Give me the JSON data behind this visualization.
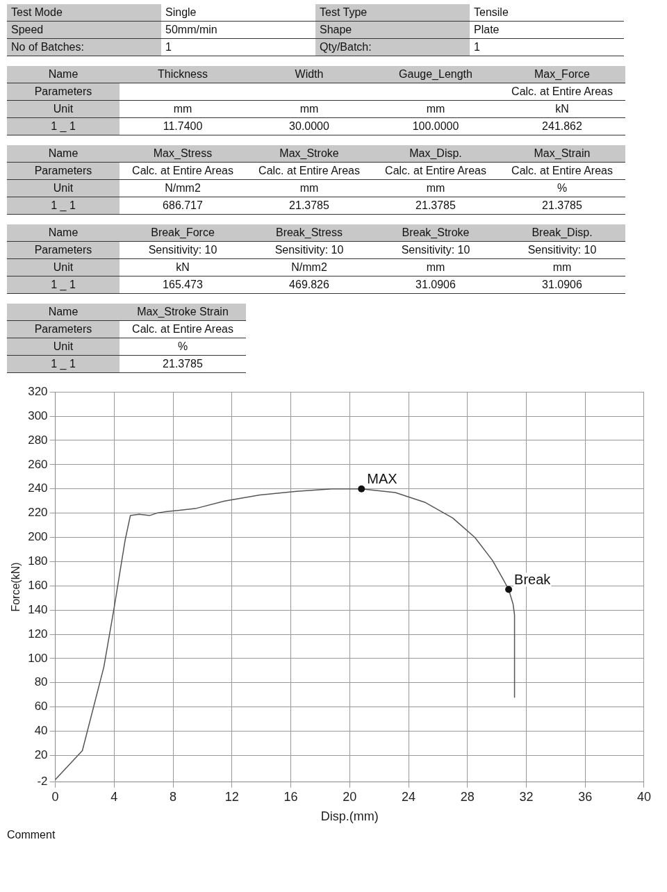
{
  "chart_data": [
    {
      "type": "other",
      "categories": [
        "Test Mode",
        "Single",
        "Test Type",
        "Tensile"
      ],
      "annotations": [
        "Speed",
        "50mm/min",
        "Shape",
        "Plate",
        "No of Batches:",
        "1",
        "Qty/Batch:",
        "1"
      ]
    },
    {
      "type": "other",
      "categories": [
        "Name",
        "Thickness",
        "Width",
        "Gauge_Length",
        "Max_Force"
      ],
      "annotations": [
        "Parameters",
        null,
        null,
        null,
        "Calc. at Entire Areas",
        "Unit",
        "mm",
        "mm",
        "mm",
        "kN",
        "1 _ 1",
        "11.7400",
        "30.0000",
        "100.0000",
        "241.862"
      ]
    },
    {
      "type": "other",
      "categories": [
        "Name",
        "Max_Stress",
        "Max_Stroke",
        "Max_Disp.",
        "Max_Strain"
      ],
      "annotations": [
        "Parameters",
        "Calc. at Entire Areas",
        "Calc. at Entire Areas",
        "Calc. at Entire Areas",
        "Calc. at Entire Areas",
        "Unit",
        "N/mm2",
        "mm",
        "mm",
        "%",
        "1 _ 1",
        "686.717",
        "21.3785",
        "21.3785",
        "21.3785"
      ]
    },
    {
      "type": "other",
      "categories": [
        "Name",
        "Break_Force",
        "Break_Stress",
        "Break_Stroke",
        "Break_Disp."
      ],
      "annotations": [
        "Parameters",
        "Sensitivity: 10",
        "Sensitivity: 10",
        "Sensitivity: 10",
        "Sensitivity: 10",
        "Unit",
        "kN",
        "N/mm2",
        "mm",
        "mm",
        "1 _ 1",
        "165.473",
        "469.826",
        "31.0906",
        "31.0906"
      ]
    },
    {
      "type": "other",
      "categories": [
        "Name",
        "Max_Stroke Strain"
      ],
      "annotations": [
        "Parameters",
        "Calc. at Entire Areas",
        "Unit",
        "%",
        "1 _ 1",
        "21.3785"
      ]
    },
    {
      "type": "line",
      "xlabel": "Disp.(mm)",
      "ylabel": "Force(kN)",
      "x": [
        0,
        1.84,
        3.3,
        4.0,
        4.75,
        5.1,
        5.7,
        6.4,
        6.9,
        7.4,
        9.6,
        11.5,
        13.9,
        16.4,
        18.8,
        20.8,
        23.1,
        25.1,
        27.0,
        28.5,
        29.7,
        30.4,
        30.8,
        31.1,
        31.2,
        31.2
      ],
      "series": [
        {
          "color": "#555555",
          "values": [
            0,
            24,
            93,
            142,
            198,
            218,
            219,
            218,
            220,
            221,
            224,
            230,
            235,
            238,
            240,
            240,
            237,
            229,
            216,
            200,
            181,
            166,
            157,
            145,
            136,
            68
          ]
        }
      ],
      "xlim": [
        0,
        40
      ],
      "xticks": [
        0,
        4,
        8,
        12,
        16,
        20,
        24,
        28,
        32,
        36,
        40
      ],
      "ylim": [
        -2,
        320
      ],
      "yticks": [
        -2,
        20,
        40,
        60,
        80,
        100,
        120,
        140,
        160,
        180,
        200,
        220,
        240,
        260,
        280,
        300,
        320
      ],
      "grid": true,
      "annotations": [
        {
          "text": "MAX",
          "x": 20.8,
          "y": 240
        },
        {
          "text": "Break",
          "x": 30.8,
          "y": 157
        },
        "Comment"
      ]
    }
  ]
}
